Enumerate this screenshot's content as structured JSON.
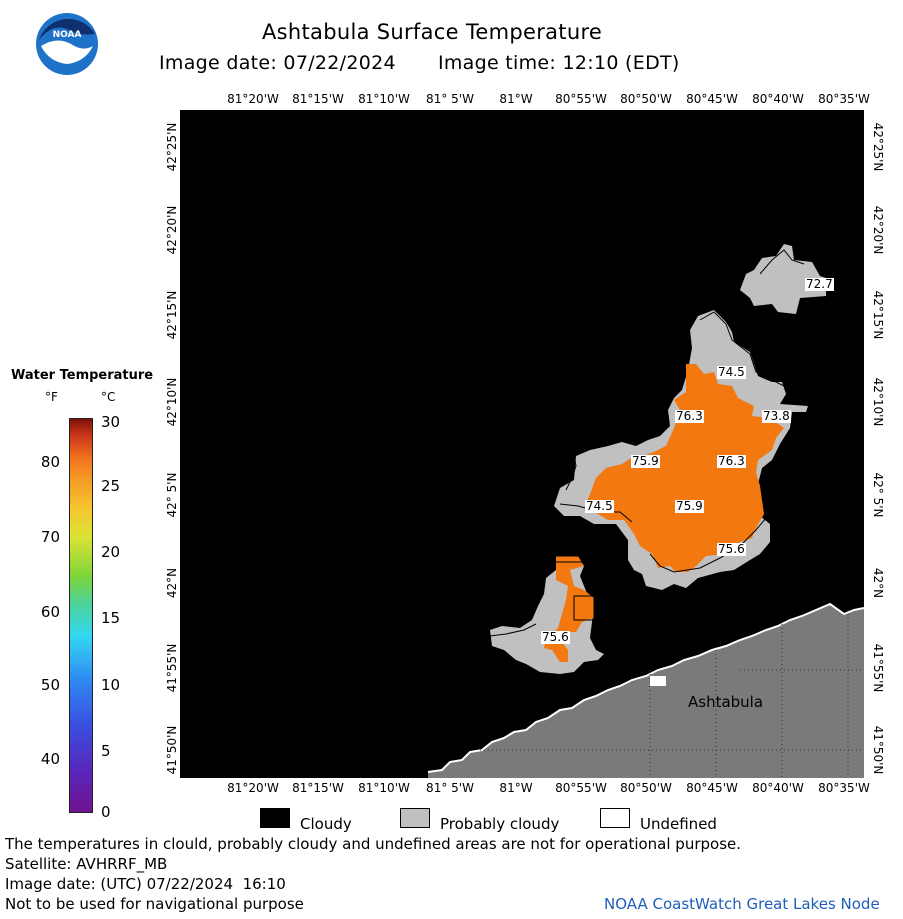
{
  "header": {
    "title": "Ashtabula Surface Temperature",
    "image_date": "Image date: 07/22/2024",
    "image_time": "Image time: 12:10 (EDT)"
  },
  "logo": {
    "text": "NOAA",
    "icon": "noaa-logo-icon",
    "colors": {
      "blue": "#1e73c9",
      "dark_blue": "#102f6e"
    }
  },
  "map": {
    "lon_labels": [
      "81°20'W",
      "81°15'W",
      "81°10'W",
      "81° 5'W",
      "81°W",
      "80°55'W",
      "80°50'W",
      "80°45'W",
      "80°40'W",
      "80°35'W"
    ],
    "lat_labels": [
      "42°25'N",
      "42°20'N",
      "42°15'N",
      "42°10'N",
      "42° 5'N",
      "42°N",
      "41°55'N",
      "41°50'N"
    ],
    "temperature_labels": [
      "72.7",
      "74.5",
      "76.3",
      "73.8",
      "75.9",
      "76.3",
      "74.5",
      "75.9",
      "75.6",
      "75.6"
    ],
    "city_label": "Ashtabula",
    "colors": {
      "cloud": "#000000",
      "probably_cloudy": "#c0c0c0",
      "water_warm": "#f2780f",
      "land": "#7a7a7a"
    }
  },
  "colorbar": {
    "title": "Water Temperature",
    "unit_f": "°F",
    "unit_c": "°C",
    "f_ticks": [
      "80",
      "70",
      "60",
      "50",
      "40"
    ],
    "c_ticks": [
      "30",
      "25",
      "20",
      "15",
      "10",
      "5",
      "0"
    ]
  },
  "legend": {
    "cloudy": "Cloudy",
    "probably_cloudy": "Probably cloudy",
    "undefined": "Undefined"
  },
  "footer": {
    "disclaimer": "The temperatures in clould, probably cloudy and undefined areas are not for operational purpose.",
    "satellite": "Satellite: AVHRRF_MB",
    "utc_date": "Image date: (UTC) 07/22/2024  16:10",
    "navigation": "Not to be used for navigational purpose",
    "credit": "NOAA CoastWatch Great Lakes Node"
  }
}
